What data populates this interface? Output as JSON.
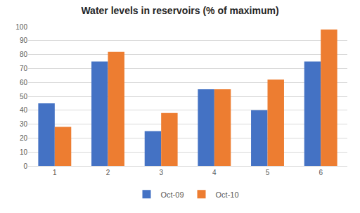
{
  "chart_data": {
    "type": "bar",
    "title": "Water levels in reservoirs (% of maximum)",
    "categories": [
      "1",
      "2",
      "3",
      "4",
      "5",
      "6"
    ],
    "series": [
      {
        "name": "Oct-09",
        "color": "#4472c4",
        "values": [
          45,
          75,
          25,
          55,
          40,
          75
        ]
      },
      {
        "name": "Oct-10",
        "color": "#ed7d31",
        "values": [
          28,
          82,
          38,
          55,
          62,
          98
        ]
      }
    ],
    "ylim": [
      0,
      100
    ],
    "yticks": [
      0,
      10,
      20,
      30,
      40,
      50,
      60,
      70,
      80,
      90,
      100
    ],
    "grid": true,
    "legend": "bottom"
  }
}
